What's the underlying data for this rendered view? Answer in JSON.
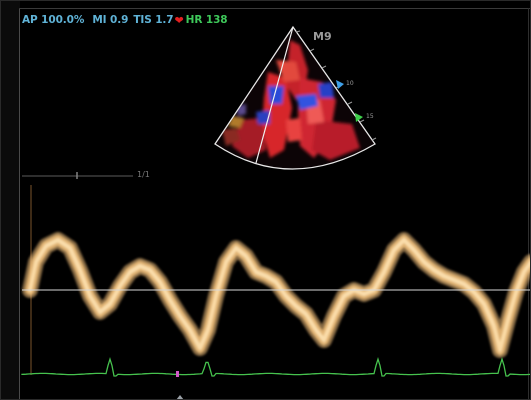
{
  "status_bar": {
    "acoustic_power": "AP 100.0%",
    "mechanical_index": "MI 0.9",
    "thermal_index": "TIS 1.7",
    "heart_rate": "HR 138"
  },
  "probe": {
    "label": "M9"
  },
  "depth_scale": {
    "marks": [
      "10",
      "15"
    ]
  },
  "frame_counter": "1/1",
  "colors": {
    "status_text": "#5fb2d6",
    "heart_rate_text": "#3ec85a",
    "heart_icon": "#e32020",
    "doppler_signal": "#f2c07a",
    "doppler_core": "#fde4b6",
    "ecg_trace": "#46c24e",
    "baseline": "#d8d8d8",
    "color_flow_red": "#d7282c",
    "color_flow_blue": "#2b4cd8",
    "depth_marker_cyan": "#3fa0e8",
    "depth_marker_green": "#3ecf4b"
  },
  "icons": {
    "heart": "heart-icon",
    "focus_marker": "triangle-marker-icon",
    "ecg_marker": "ecg-marker-icon"
  }
}
